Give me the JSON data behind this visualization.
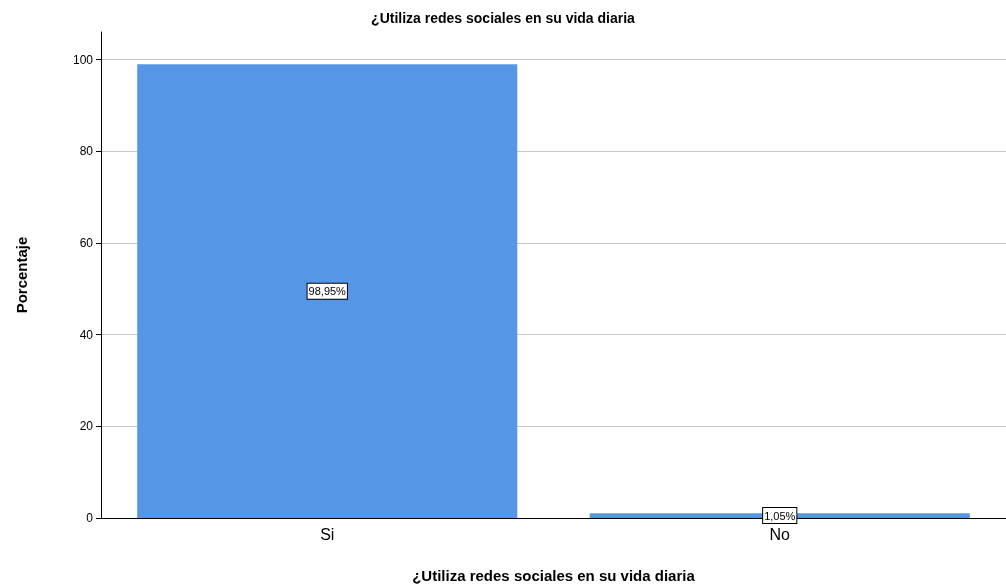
{
  "chart_data": {
    "type": "bar",
    "title": "¿Utiliza redes sociales en su vida diaria",
    "xlabel": "¿Utiliza redes sociales en su vida diaria",
    "ylabel": "Porcentaje",
    "categories": [
      "Si",
      "No"
    ],
    "values": [
      98.95,
      1.05
    ],
    "value_labels": [
      "98,95%",
      "1,05%"
    ],
    "color": "#5596e6",
    "ylim": [
      0,
      106
    ],
    "yticks": [
      0,
      20,
      40,
      60,
      80,
      100
    ],
    "grid": "y"
  }
}
